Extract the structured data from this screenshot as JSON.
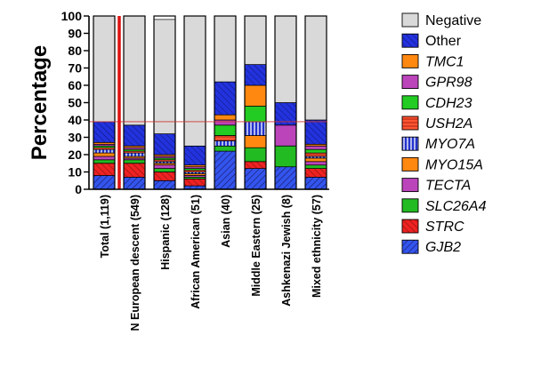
{
  "chart_data": {
    "type": "bar",
    "stacked": true,
    "ylabel": "Percentage",
    "ylim": [
      0,
      100
    ],
    "yticks": [
      0,
      10,
      20,
      30,
      40,
      50,
      60,
      70,
      80,
      90,
      100
    ],
    "reference_line": 39,
    "categories": [
      "Total (1,119)",
      "N European descent (549)",
      "Hispanic (128)",
      "African American (51)",
      "Asian (40)",
      "Middle Eastern (25)",
      "Ashkenazi Jewish (8)",
      "Mixed ethnicity (57)"
    ],
    "series": [
      {
        "name": "GJB2",
        "color": "#3355ee",
        "values": [
          8,
          7,
          5,
          2,
          22,
          12,
          13,
          7
        ]
      },
      {
        "name": "STRC",
        "color": "#ee2222",
        "values": [
          7,
          8,
          5,
          4,
          0,
          4,
          0,
          5
        ]
      },
      {
        "name": "SLC26A4",
        "color": "#22bb22",
        "values": [
          2,
          2,
          2,
          1,
          3,
          8,
          12,
          2
        ]
      },
      {
        "name": "TECTA",
        "color": "#bb44bb",
        "values": [
          2,
          1,
          2,
          1,
          0,
          0,
          0,
          2
        ]
      },
      {
        "name": "MYO15A",
        "color": "#ff8811",
        "values": [
          2,
          1,
          1,
          1,
          0,
          7,
          0,
          2
        ]
      },
      {
        "name": "MYO7A",
        "color": "#2233cc",
        "values": [
          2,
          2,
          1,
          1,
          3,
          8,
          0,
          1
        ]
      },
      {
        "name": "USH2A",
        "color": "#ff5533",
        "values": [
          1,
          1,
          1,
          1,
          3,
          0,
          0,
          2
        ]
      },
      {
        "name": "CDH23",
        "color": "#22cc22",
        "values": [
          1,
          1,
          1,
          1,
          6,
          9,
          0,
          2
        ]
      },
      {
        "name": "GPR98",
        "color": "#bb44bb",
        "values": [
          1,
          1,
          1,
          1,
          3,
          0,
          12,
          2
        ]
      },
      {
        "name": "TMC1",
        "color": "#ff8811",
        "values": [
          1,
          1,
          1,
          1,
          3,
          12,
          0,
          1
        ]
      },
      {
        "name": "Other",
        "color": "#2233dd",
        "values": [
          12,
          12,
          12,
          11,
          19,
          12,
          13,
          14
        ]
      },
      {
        "name": "Negative",
        "color": "#d9d9d9",
        "values": [
          61,
          63,
          66,
          75,
          38,
          28,
          50,
          60
        ]
      }
    ],
    "legend": [
      "Negative",
      "Other",
      "TMC1",
      "GPR98",
      "CDH23",
      "USH2A",
      "MYO7A",
      "MYO15A",
      "TECTA",
      "SLC26A4",
      "STRC",
      "GJB2"
    ],
    "legend_position": "right"
  }
}
